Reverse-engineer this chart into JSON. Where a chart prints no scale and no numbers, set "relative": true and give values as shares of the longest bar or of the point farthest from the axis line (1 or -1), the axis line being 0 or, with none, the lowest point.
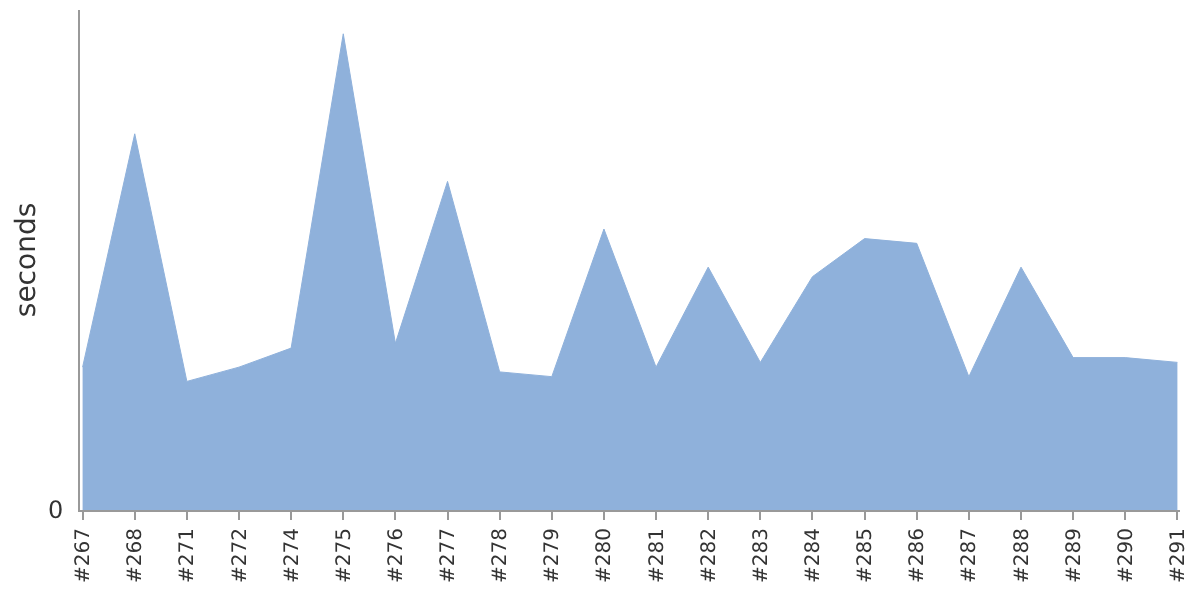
{
  "chart_data": {
    "type": "area",
    "ylabel": "seconds",
    "relative": true,
    "annotations": [
      "0"
    ],
    "categories": [
      "#267",
      "#268",
      "#271",
      "#272",
      "#274",
      "#275",
      "#276",
      "#277",
      "#278",
      "#279",
      "#280",
      "#281",
      "#282",
      "#283",
      "#284",
      "#285",
      "#286",
      "#287",
      "#288",
      "#289",
      "#290",
      "#291"
    ],
    "series": [
      {
        "color": "#8fb1db",
        "values": [
          0.3,
          0.79,
          0.27,
          0.3,
          0.34,
          1,
          0.35,
          0.69,
          0.29,
          0.28,
          0.59,
          0.3,
          0.51,
          0.31,
          0.49,
          0.57,
          0.56,
          0.28,
          0.51,
          0.32,
          0.32,
          0.31
        ]
      }
    ]
  }
}
